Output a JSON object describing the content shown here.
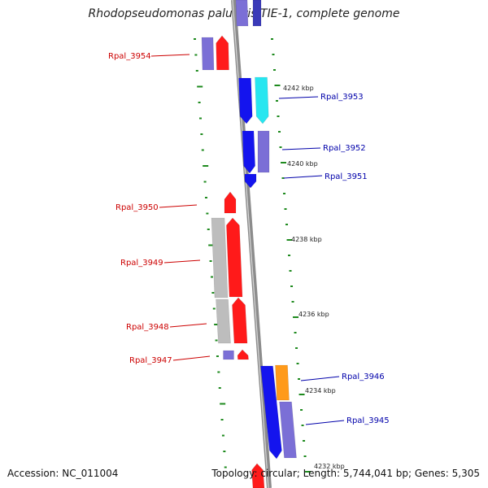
{
  "title": "Rhodopseudomonas palustris TIE-1, complete genome",
  "footer": {
    "accession": "Accession: NC_011004",
    "summary": "Topology: circular; Length: 5,744,041 bp; Genes: 5,305"
  },
  "colors": {
    "backbone": "#8c8c8c",
    "tick": "#1e8a1e",
    "left_label": "#cc0000",
    "right_label": "#0000aa",
    "red": "#ff1a1a",
    "blue": "#1414ee",
    "slate": "#7b6fd6",
    "cyan": "#27e6f0",
    "orange": "#ff9a1a",
    "grey": "#bdbdbd"
  },
  "kbp_labels": [
    "4242 kbp",
    "4240 kbp",
    "4238 kbp",
    "4236 kbp",
    "4234 kbp",
    "4232 kbp"
  ],
  "gene_labels": {
    "left": [
      "Rpal_3954",
      "Rpal_3950",
      "Rpal_3949",
      "Rpal_3948",
      "Rpal_3947"
    ],
    "right": [
      "Rpal_3953",
      "Rpal_3952",
      "Rpal_3951",
      "Rpal_3946",
      "Rpal_3945"
    ]
  }
}
